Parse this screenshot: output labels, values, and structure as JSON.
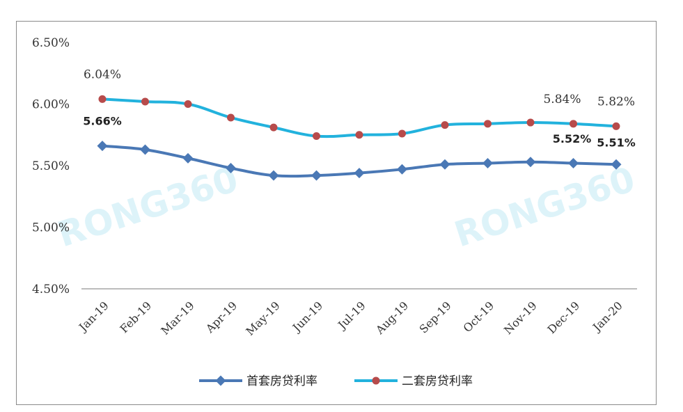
{
  "chart_data": {
    "type": "line",
    "categories": [
      "Jan-19",
      "Feb-19",
      "Mar-19",
      "Apr-19",
      "May-19",
      "Jun-19",
      "Jul-19",
      "Aug-19",
      "Sep-19",
      "Oct-19",
      "Nov-19",
      "Dec-19",
      "Jan-20"
    ],
    "ylim": [
      4.5,
      6.5
    ],
    "yticks": [
      "4.50%",
      "5.00%",
      "5.50%",
      "6.00%",
      "6.50%"
    ],
    "ytick_values": [
      4.5,
      5.0,
      5.5,
      6.0,
      6.5
    ],
    "grid": false,
    "legend_position": "bottom",
    "series": [
      {
        "name": "首套房贷利率",
        "color": "#4a78b5",
        "marker": "diamond",
        "values": [
          5.66,
          5.63,
          5.56,
          5.48,
          5.42,
          5.42,
          5.44,
          5.47,
          5.51,
          5.52,
          5.53,
          5.52,
          5.51
        ],
        "labels": [
          {
            "index": 0,
            "text": "5.66%"
          },
          {
            "index": 11,
            "text": "5.52%"
          },
          {
            "index": 12,
            "text": "5.51%"
          }
        ]
      },
      {
        "name": "二套房贷利率",
        "color": "#22b2dd",
        "marker_color": "#b74b4b",
        "marker": "circle",
        "values": [
          6.04,
          6.02,
          6.0,
          5.89,
          5.81,
          5.74,
          5.75,
          5.76,
          5.83,
          5.84,
          5.85,
          5.84,
          5.82
        ],
        "labels": [
          {
            "index": 0,
            "text": "6.04%"
          },
          {
            "index": 11,
            "text": "5.84%"
          },
          {
            "index": 12,
            "text": "5.82%"
          }
        ]
      }
    ]
  },
  "watermarks": [
    "RONG360",
    "RONG360"
  ]
}
